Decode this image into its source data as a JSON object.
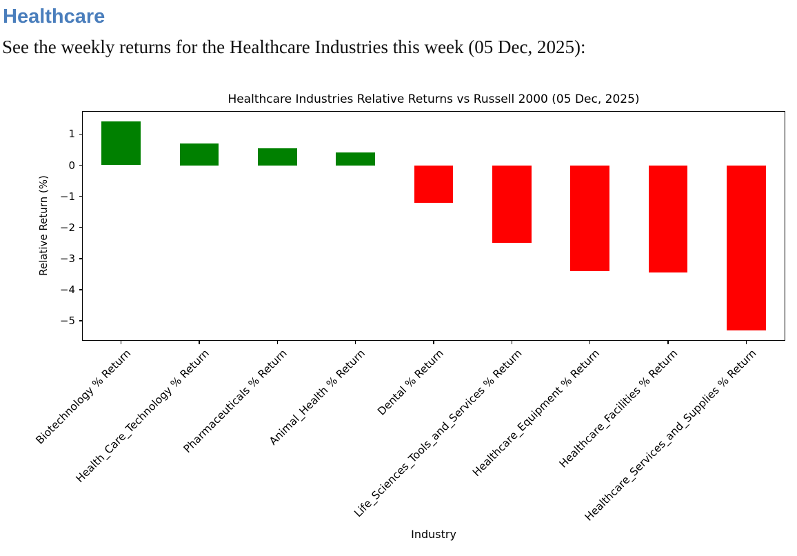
{
  "page": {
    "heading": "Healthcare",
    "subtitle": "See the weekly returns for the Healthcare Industries this week (05 Dec, 2025):"
  },
  "colors": {
    "heading_blue": "#4a7ebc",
    "chart_text": "#000000"
  },
  "chart_data": {
    "type": "bar",
    "title": "Healthcare Industries Relative Returns vs Russell 2000 (05 Dec, 2025)",
    "xlabel": "Industry",
    "ylabel": "Relative Return (%)",
    "categories": [
      "Biotechnology % Return",
      "Health_Care_Technology % Return",
      "Pharmaceuticals % Return",
      "Animal_Health % Return",
      "Dental % Return",
      "Life_Sciences_Tools_and_Services % Return",
      "Healthcare_Equipment % Return",
      "Healthcare_Facilities % Return",
      "Healthcare_Services_and_Supplies % Return"
    ],
    "values": [
      1.4,
      0.7,
      0.55,
      0.4,
      -1.2,
      -2.5,
      -3.4,
      -3.45,
      -5.3
    ],
    "positive_color": "#008000",
    "negative_color": "#ff0000",
    "ylim": [
      -5.64,
      1.74
    ],
    "yticks": [
      1,
      0,
      -1,
      -2,
      -3,
      -4,
      -5
    ],
    "x_tick_rotation_deg": 45,
    "grid": false,
    "legend": "none"
  }
}
